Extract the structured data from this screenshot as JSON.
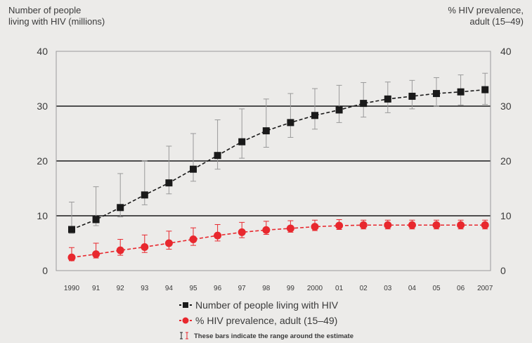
{
  "chart_data": {
    "type": "line",
    "ylabel_left": [
      "Number of people",
      "living with HIV (millions)"
    ],
    "ylabel_right": [
      "% HIV prevalence,",
      "adult (15–49)"
    ],
    "ylim": [
      0,
      40
    ],
    "y_ticks_left": [
      "0",
      "10",
      "20",
      "30",
      "40"
    ],
    "y_ticks_right": [
      "0",
      "10",
      "20",
      "30",
      "40"
    ],
    "categories": [
      "1990",
      "91",
      "92",
      "93",
      "94",
      "95",
      "96",
      "97",
      "98",
      "99",
      "2000",
      "01",
      "02",
      "03",
      "04",
      "05",
      "06",
      "2007"
    ],
    "grid": "horizontal",
    "series": [
      {
        "name": "Number of people living with HIV",
        "color": "#1a1a1a",
        "marker": "square",
        "values": [
          7.5,
          9.3,
          11.5,
          13.8,
          16.0,
          18.5,
          21.0,
          23.5,
          25.5,
          27.0,
          28.3,
          29.3,
          30.5,
          31.3,
          31.8,
          32.3,
          32.6,
          33.0
        ],
        "low": [
          6.8,
          8.2,
          9.8,
          12.0,
          14.0,
          16.3,
          18.5,
          20.5,
          22.5,
          24.3,
          25.8,
          27.0,
          28.0,
          28.8,
          29.5,
          30.0,
          30.2,
          30.3
        ],
        "high": [
          12.5,
          15.3,
          17.7,
          20.0,
          22.7,
          25.0,
          27.5,
          29.5,
          31.3,
          32.3,
          33.2,
          33.8,
          34.3,
          34.4,
          34.7,
          35.2,
          35.7,
          36.0
        ]
      },
      {
        "name": "% HIV prevalence, adult (15–49)",
        "color": "#e8282e",
        "marker": "circle",
        "values": [
          2.4,
          3.0,
          3.7,
          4.3,
          5.0,
          5.7,
          6.4,
          7.0,
          7.4,
          7.7,
          8.0,
          8.2,
          8.3,
          8.3,
          8.3,
          8.3,
          8.3,
          8.3
        ],
        "low": [
          1.8,
          2.3,
          2.8,
          3.3,
          3.9,
          4.6,
          5.4,
          6.0,
          6.6,
          7.0,
          7.3,
          7.5,
          7.6,
          7.6,
          7.6,
          7.6,
          7.6,
          7.6
        ],
        "high": [
          4.2,
          5.0,
          5.7,
          6.5,
          7.2,
          7.8,
          8.4,
          8.8,
          9.0,
          9.1,
          9.2,
          9.3,
          9.2,
          9.2,
          9.2,
          9.2,
          9.2,
          9.2
        ]
      }
    ],
    "legend": {
      "placement": "bottom-center",
      "entries": [
        "Number of people living with HIV",
        "% HIV prevalence, adult (15–49)"
      ],
      "note": "These bars indicate the range around the estimate"
    }
  }
}
